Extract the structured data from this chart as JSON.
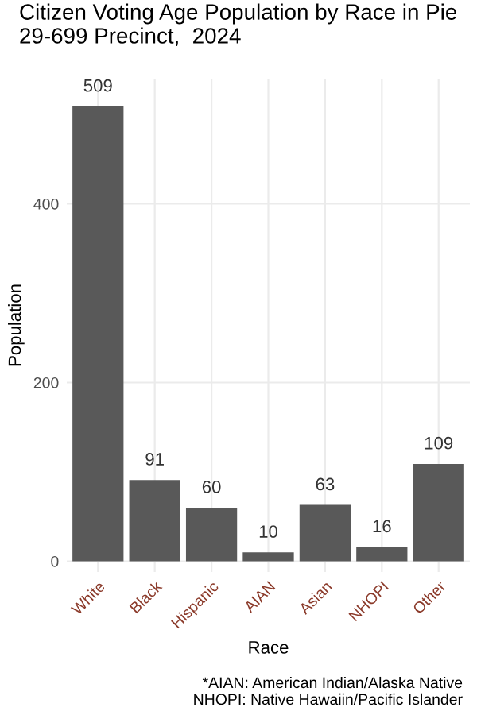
{
  "chart_data": {
    "type": "bar",
    "title": "Citizen Voting Age Population by Race in Pie\n29-699 Precinct,  2024",
    "xlabel": "Race",
    "ylabel": "Population",
    "categories": [
      "White",
      "Black",
      "Hispanic",
      "AIAN",
      "Asian",
      "NHOPI",
      "Other"
    ],
    "values": [
      509,
      91,
      60,
      10,
      63,
      16,
      109
    ],
    "color": "#595959",
    "ylim": [
      -12,
      540
    ],
    "yticks": [
      0,
      200,
      400
    ],
    "grid": true,
    "data_labels": true,
    "annotations": [
      "*AIAN: American Indian/Alaska Native\nNHOPI: Native Hawaiin/Pacific Islander"
    ]
  }
}
